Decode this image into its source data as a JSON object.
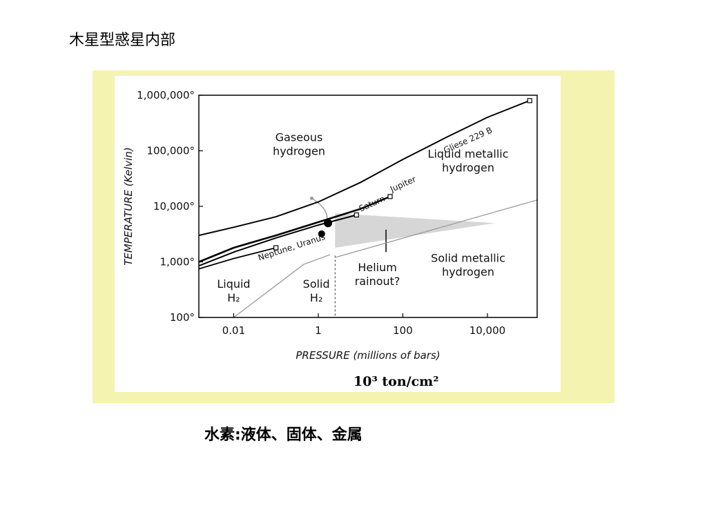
{
  "slide": {
    "title": "木星型惑星内部",
    "caption": "水素:液体、固体、金属",
    "unit_note": "10³ ton/cm²"
  },
  "colors": {
    "frame": "#f4f4b0",
    "curve": "#000000",
    "boundary": "#9a9a9a",
    "shade": "#cfcfcf"
  },
  "chart_data": {
    "type": "line",
    "xscale": "log",
    "yscale": "log",
    "xlabel": "PRESSURE (millions of bars)",
    "ylabel": "TEMPERATURE (Kelvin)",
    "xlim": [
      0.0015,
      150000
    ],
    "ylim": [
      100,
      1000000
    ],
    "x_ticks": [
      {
        "value": 0.01,
        "label": "0.01"
      },
      {
        "value": 1,
        "label": "1"
      },
      {
        "value": 100,
        "label": "100"
      },
      {
        "value": 10000,
        "label": "10,000"
      }
    ],
    "y_ticks": [
      {
        "value": 100,
        "label": "100°"
      },
      {
        "value": 1000,
        "label": "1,000°"
      },
      {
        "value": 10000,
        "label": "10,000°"
      },
      {
        "value": 100000,
        "label": "100,000°"
      },
      {
        "value": 1000000,
        "label": "1,000,000°"
      }
    ],
    "series": [
      {
        "name": "Gliese 229 B",
        "x": [
          0.0015,
          0.01,
          0.1,
          1,
          10,
          100,
          1000,
          10000,
          100000
        ],
        "y": [
          3000,
          4200,
          6500,
          12000,
          27000,
          70000,
          170000,
          400000,
          800000
        ]
      },
      {
        "name": "Jupiter",
        "x": [
          0.0015,
          0.01,
          0.1,
          1,
          10,
          50
        ],
        "y": [
          1000,
          1800,
          3000,
          5200,
          9000,
          15000
        ]
      },
      {
        "name": "Saturn",
        "x": [
          0.0015,
          0.01,
          0.1,
          1,
          8
        ],
        "y": [
          850,
          1500,
          2700,
          4600,
          7000
        ]
      },
      {
        "name": "Neptune, Uranus",
        "x": [
          0.0015,
          0.01,
          0.1
        ],
        "y": [
          750,
          1150,
          1800
        ]
      }
    ],
    "phase_boundaries": [
      {
        "x": [
          0.01,
          0.45,
          1.9
        ],
        "y": [
          100,
          900,
          1350
        ]
      },
      {
        "x": [
          2.5,
          150000
        ],
        "y": [
          1200,
          13000
        ]
      }
    ],
    "rainout_region": {
      "x": [
        2.5,
        2.5,
        15000
      ],
      "y": [
        1800,
        7500,
        5000
      ]
    },
    "regions": [
      {
        "label": "Gaseous hydrogen",
        "x": 0.35,
        "y": 150000
      },
      {
        "label": "Liquid metallic hydrogen",
        "x": 3500,
        "y": 75000
      },
      {
        "label": "Solid metallic hydrogen",
        "x": 3500,
        "y": 1000
      },
      {
        "label": "Liquid H₂",
        "x": 0.01,
        "y": 340
      },
      {
        "label": "Solid H₂",
        "x": 0.9,
        "y": 340
      },
      {
        "label": "Helium rainout?",
        "x": 25,
        "y": 680
      }
    ],
    "region_lines": [
      [
        "Gaseous",
        "hydrogen"
      ],
      [
        "Liquid metallic",
        "hydrogen"
      ],
      [
        "Solid metallic",
        "hydrogen"
      ],
      [
        "Liquid",
        "H₂"
      ],
      [
        "Solid",
        "H₂"
      ],
      [
        "Helium",
        "rainout?"
      ]
    ],
    "markers": [
      {
        "x": 1.7,
        "y": 5000
      },
      {
        "x": 1.2,
        "y": 3200
      }
    ]
  }
}
